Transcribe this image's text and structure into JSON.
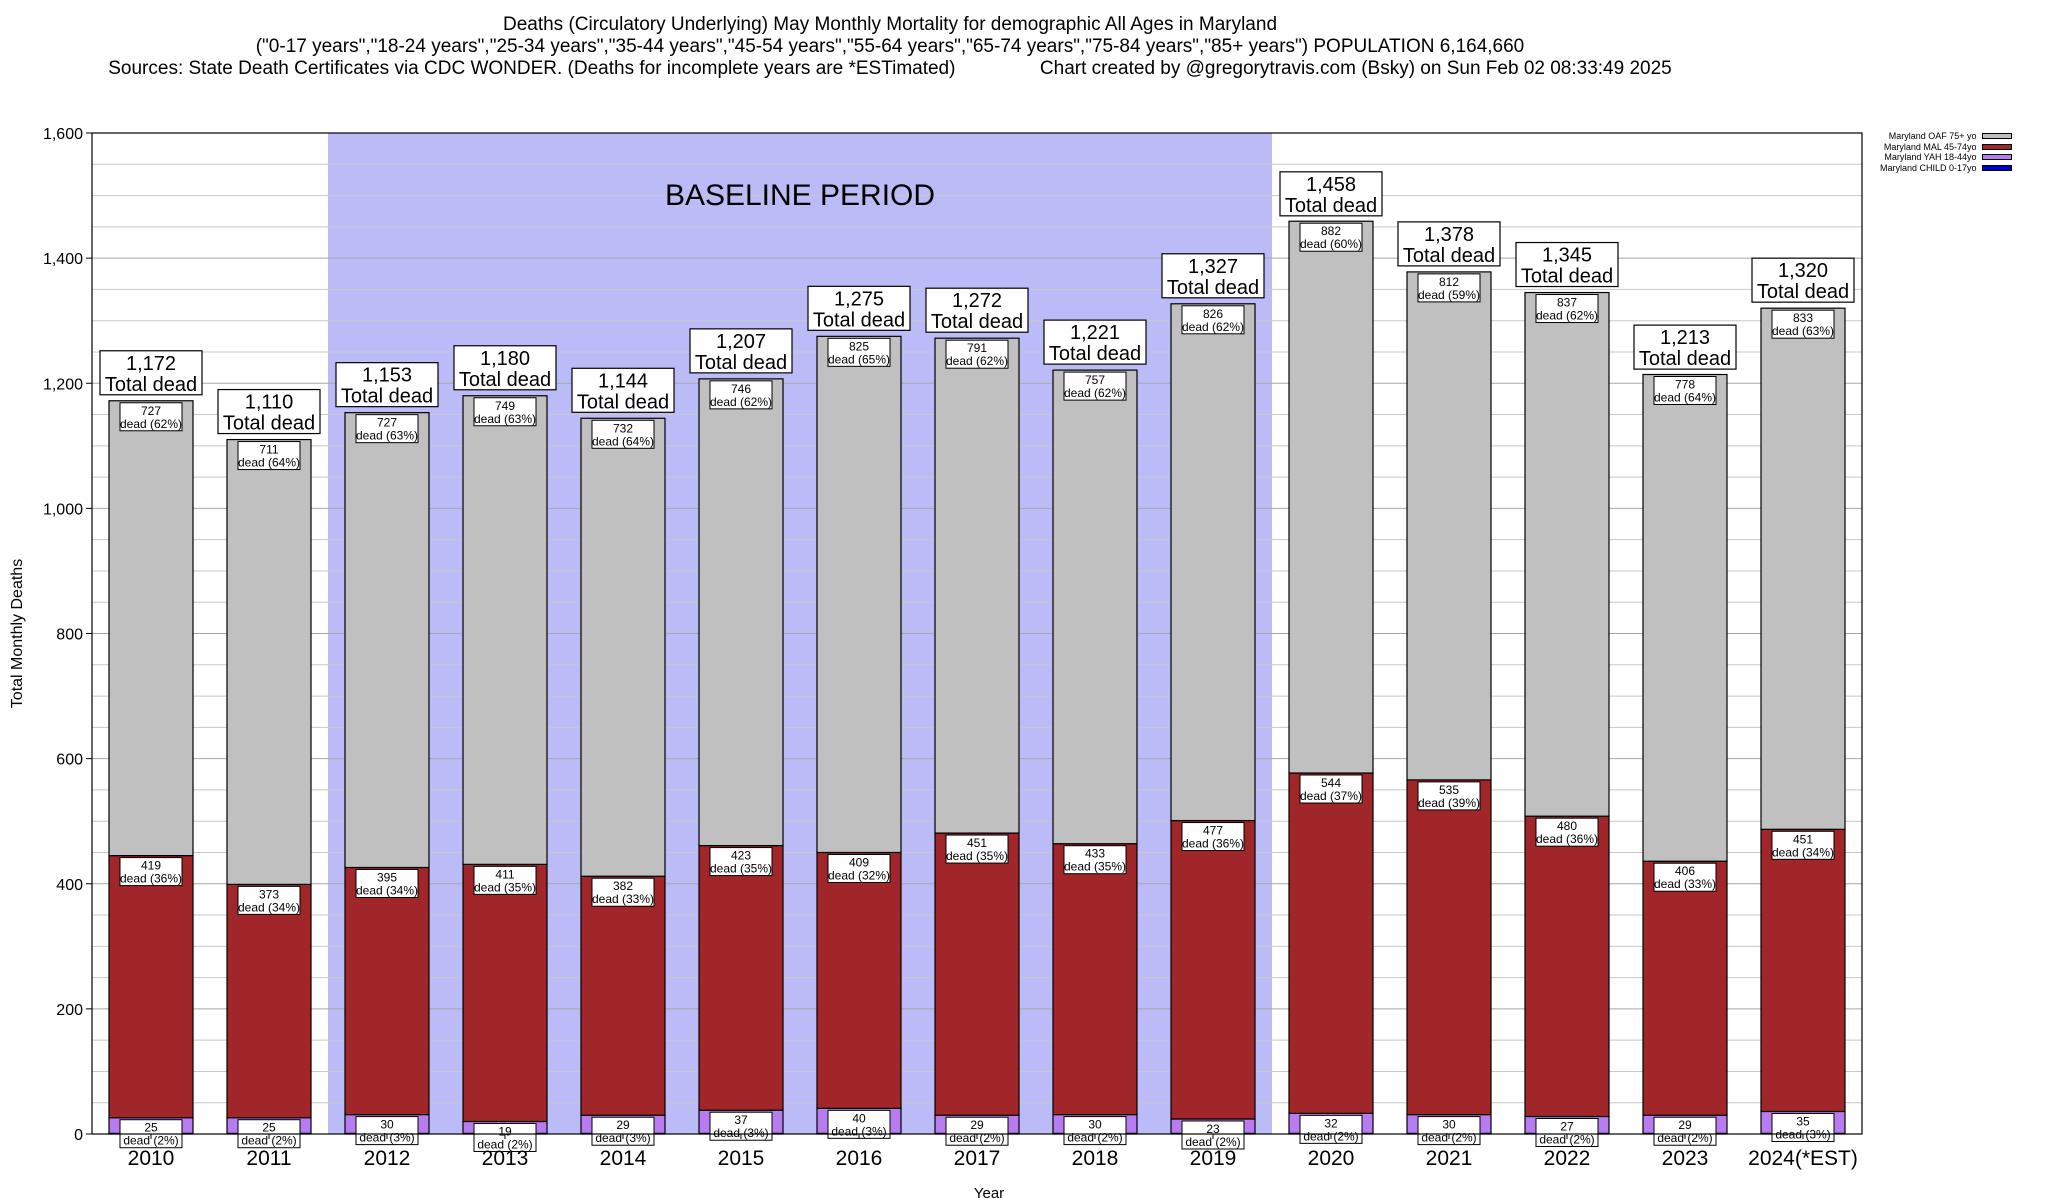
{
  "title": {
    "line1": "Deaths (Circulatory Underlying) May Monthly Mortality for demographic All Ages in Maryland",
    "line2": "(\"0-17 years\",\"18-24 years\",\"25-34 years\",\"35-44 years\",\"45-54 years\",\"55-64 years\",\"65-74 years\",\"75-84 years\",\"85+ years\") POPULATION 6,164,660",
    "line3": "Sources: State Death Certificates via CDC WONDER. (Deaths for incomplete years are *ESTimated)                Chart created by @gregorytravis.com (Bsky) on Sun Feb 02 08:33:49 2025"
  },
  "colors": {
    "oaf": "#c0c0c0",
    "mal": "#a1262a",
    "yah": "#b77cf0",
    "child": "#0000cc",
    "baseline": "#bbbbf7",
    "grid": "#c8c8c8"
  },
  "legend": [
    {
      "label": "Maryland OAF 75+ yo",
      "color_key": "oaf"
    },
    {
      "label": "Maryland MAL 45-74yo",
      "color_key": "mal"
    },
    {
      "label": "Maryland YAH 18-44yo",
      "color_key": "yah"
    },
    {
      "label": "Maryland CHILD 0-17yo",
      "color_key": "child"
    }
  ],
  "chart_data": {
    "type": "bar",
    "stacked": true,
    "xlabel": "Year",
    "ylabel": "Total Monthly Deaths",
    "ylim": [
      0,
      1600
    ],
    "yticks": [
      0,
      200,
      400,
      600,
      800,
      1000,
      1200,
      1400,
      1600
    ],
    "ytick_labels": [
      "0",
      "200",
      "400",
      "600",
      "800",
      "1,000",
      "1,200",
      "1,400",
      "1,600"
    ],
    "grid": true,
    "legend_position": "top-right",
    "baseline_period": {
      "label": "BASELINE PERIOD",
      "from": "2012",
      "to": "2019"
    },
    "total_suffix": "Total dead",
    "categories": [
      "2010",
      "2011",
      "2012",
      "2013",
      "2014",
      "2015",
      "2016",
      "2017",
      "2018",
      "2019",
      "2020",
      "2021",
      "2022",
      "2023",
      "2024(*EST)"
    ],
    "totals": [
      1172,
      1110,
      1153,
      1180,
      1144,
      1207,
      1275,
      1272,
      1221,
      1327,
      1458,
      1378,
      1345,
      1213,
      1320
    ],
    "total_labels": [
      "1,172",
      "1,110",
      "1,153",
      "1,180",
      "1,144",
      "1,207",
      "1,275",
      "1,272",
      "1,221",
      "1,327",
      "1,458",
      "1,378",
      "1,345",
      "1,213",
      "1,320"
    ],
    "series": [
      {
        "name": "Maryland CHILD 0-17yo",
        "color_key": "child",
        "values": [
          1,
          1,
          1,
          1,
          1,
          1,
          1,
          1,
          1,
          1,
          1,
          1,
          1,
          1,
          1
        ]
      },
      {
        "name": "Maryland YAH 18-44yo",
        "color_key": "yah",
        "values": [
          25,
          25,
          30,
          19,
          29,
          37,
          40,
          29,
          30,
          23,
          32,
          30,
          27,
          29,
          35
        ],
        "labels": [
          "25\ndead (2%)",
          "25\ndead (2%)",
          "30\ndead (3%)",
          "19\ndead (2%)",
          "29\ndead (3%)",
          "37\ndead (3%)",
          "40\ndead (3%)",
          "29\ndead (2%)",
          "30\ndead (2%)",
          "23\ndead (2%)",
          "32\ndead (2%)",
          "30\ndead (2%)",
          "27\ndead (2%)",
          "29\ndead (2%)",
          "35\ndead (3%)"
        ]
      },
      {
        "name": "Maryland MAL 45-74yo",
        "color_key": "mal",
        "values": [
          419,
          373,
          395,
          411,
          382,
          423,
          409,
          451,
          433,
          477,
          544,
          535,
          480,
          406,
          451
        ],
        "labels": [
          "419\ndead (36%)",
          "373\ndead (34%)",
          "395\ndead (34%)",
          "411\ndead (35%)",
          "382\ndead (33%)",
          "423\ndead (35%)",
          "409\ndead (32%)",
          "451\ndead (35%)",
          "433\ndead (35%)",
          "477\ndead (36%)",
          "544\ndead (37%)",
          "535\ndead (39%)",
          "480\ndead (36%)",
          "406\ndead (33%)",
          "451\ndead (34%)"
        ]
      },
      {
        "name": "Maryland OAF 75+ yo",
        "color_key": "oaf",
        "values": [
          727,
          711,
          727,
          749,
          732,
          746,
          825,
          791,
          757,
          826,
          882,
          812,
          837,
          778,
          833
        ],
        "labels": [
          "727\ndead (62%)",
          "711\ndead (64%)",
          "727\ndead (63%)",
          "749\ndead (63%)",
          "732\ndead (64%)",
          "746\ndead (62%)",
          "825\ndead (65%)",
          "791\ndead (62%)",
          "757\ndead (62%)",
          "826\ndead (62%)",
          "882\ndead (60%)",
          "812\ndead (59%)",
          "837\ndead (62%)",
          "778\ndead (64%)",
          "833\ndead (63%)"
        ]
      }
    ]
  }
}
